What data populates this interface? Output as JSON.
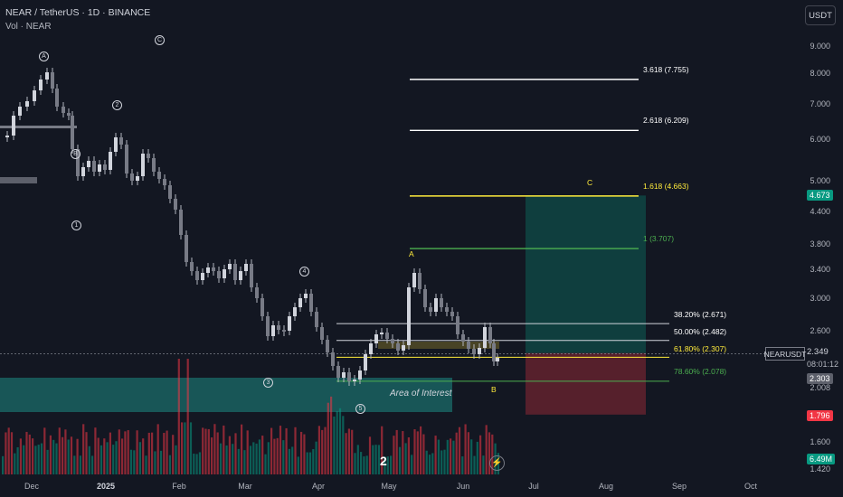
{
  "header": {
    "title": "NEAR / TetherUS · 1D · BINANCE",
    "volume_label": "Vol · NEAR",
    "currency": "USDT"
  },
  "y_axis_labels": [
    "9.000",
    "8.000",
    "7.000",
    "6.000",
    "5.000",
    "4.400",
    "3.800",
    "3.400",
    "3.000",
    "2.600",
    "2.008",
    "1.600",
    "1.420"
  ],
  "x_axis_labels": [
    "Dec",
    "2025",
    "Feb",
    "Mar",
    "Apr",
    "May",
    "Jun",
    "Jul",
    "Aug",
    "Sep",
    "Oct"
  ],
  "price_tags": {
    "target": "4.673",
    "current": "2.349",
    "countdown": "08:01:12",
    "level_2303": "2.303",
    "stop": "1.796",
    "volume": "6.49M",
    "symbol": "NEARUSDT"
  },
  "fib_levels": [
    {
      "label": "3.618 (7.755)",
      "color": "#ffffff"
    },
    {
      "label": "2.618 (6.209)",
      "color": "#ffffff"
    },
    {
      "label": "1.618 (4.663)",
      "color": "#ffeb3b"
    },
    {
      "label": "1 (3.707)",
      "color": "#4caf50"
    },
    {
      "label": "38.20% (2.671)",
      "color": "#ffffff"
    },
    {
      "label": "50.00% (2.482)",
      "color": "#ffffff"
    },
    {
      "label": "61.80% (2.307)",
      "color": "#ffeb3b"
    },
    {
      "label": "78.60% (2.078)",
      "color": "#4caf50"
    }
  ],
  "wave_labels": [
    "A",
    "C",
    "1",
    "2",
    "B",
    "1",
    "4",
    "3",
    "3",
    "5"
  ],
  "abc_labels": {
    "a": "A",
    "b": "B",
    "c": "C"
  },
  "area_of_interest": "Area of Interest",
  "logo": "2",
  "chart_data": {
    "type": "candlestick",
    "symbol": "NEARUSDT",
    "timeframe": "1D",
    "y_scale": "log",
    "fib_extension": [
      {
        "ratio": "3.618",
        "price": 7.755
      },
      {
        "ratio": "2.618",
        "price": 6.209
      },
      {
        "ratio": "1.618",
        "price": 4.663
      },
      {
        "ratio": "1",
        "price": 3.707
      }
    ],
    "fib_retracement": [
      {
        "ratio": "38.20%",
        "price": 2.671
      },
      {
        "ratio": "50.00%",
        "price": 2.482
      },
      {
        "ratio": "61.80%",
        "price": 2.307
      },
      {
        "ratio": "78.60%",
        "price": 2.078
      }
    ],
    "current_price": 2.349,
    "target_price": 4.673,
    "stop_price": 1.796
  }
}
